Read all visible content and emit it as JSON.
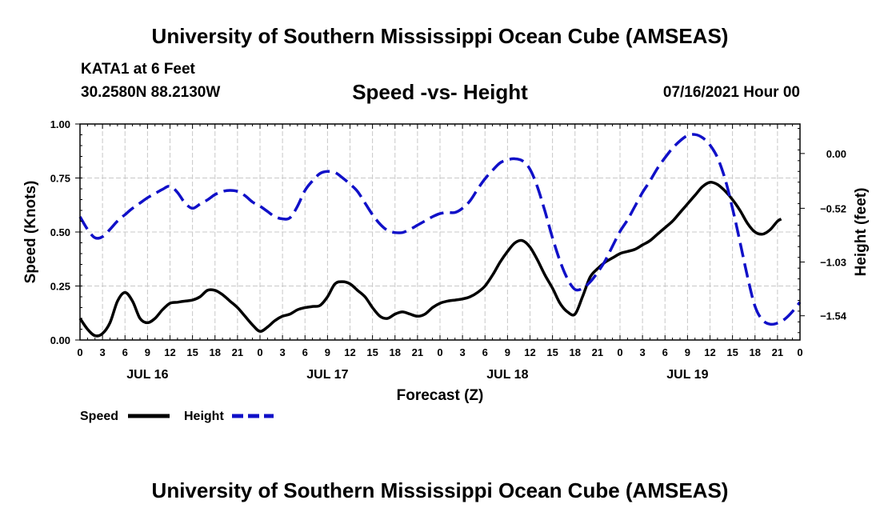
{
  "header": {
    "title": "University of Southern Mississippi Ocean Cube (AMSEAS)",
    "station": "KATA1 at 6 Feet",
    "coords": "30.2580N  88.2130W",
    "subtitle": "Speed -vs- Height",
    "datetime": "07/16/2021 Hour 00"
  },
  "footer": {
    "title": "University of Southern Mississippi Ocean Cube (AMSEAS)"
  },
  "chart_data": {
    "type": "line",
    "title": "Speed -vs- Height",
    "xlabel": "Forecast (Z)",
    "ylabel_left": "Speed (Knots)",
    "ylabel_right": "Height (feet)",
    "x_range_hours": [
      0,
      96
    ],
    "x_tick_labels": [
      "0",
      "3",
      "6",
      "9",
      "12",
      "15",
      "18",
      "21",
      "0",
      "3",
      "6",
      "9",
      "12",
      "15",
      "18",
      "21",
      "0",
      "3",
      "6",
      "9",
      "12",
      "15",
      "18",
      "21",
      "0",
      "3",
      "6",
      "9",
      "12",
      "15",
      "18",
      "21",
      "0"
    ],
    "day_labels": [
      {
        "label": "JUL 16",
        "hour": 9
      },
      {
        "label": "JUL 17",
        "hour": 33
      },
      {
        "label": "JUL 18",
        "hour": 57
      },
      {
        "label": "JUL 19",
        "hour": 81
      }
    ],
    "ylim_left": [
      0,
      1
    ],
    "y_ticks_left": [
      "0.00",
      "0.25",
      "0.50",
      "0.75",
      "1.00"
    ],
    "y_ticks_left_values": [
      0,
      0.25,
      0.5,
      0.75,
      1
    ],
    "ylim_right": [
      -1.77,
      0.28
    ],
    "y_ticks_right": [
      "0.00",
      "−0.52",
      "−1.03",
      "−1.54"
    ],
    "y_ticks_right_values": [
      0.0,
      -0.52,
      -1.03,
      -1.54
    ],
    "grid": true,
    "series": [
      {
        "name": "Speed",
        "axis": "left",
        "color": "#000000",
        "dash": "solid",
        "points": [
          [
            0,
            0.1
          ],
          [
            1,
            0.05
          ],
          [
            2,
            0.02
          ],
          [
            3,
            0.03
          ],
          [
            4,
            0.08
          ],
          [
            5,
            0.18
          ],
          [
            6,
            0.22
          ],
          [
            7,
            0.18
          ],
          [
            8,
            0.1
          ],
          [
            9,
            0.08
          ],
          [
            10,
            0.1
          ],
          [
            11,
            0.14
          ],
          [
            12,
            0.17
          ],
          [
            13,
            0.175
          ],
          [
            14,
            0.18
          ],
          [
            15,
            0.185
          ],
          [
            16,
            0.2
          ],
          [
            17,
            0.23
          ],
          [
            18,
            0.23
          ],
          [
            19,
            0.21
          ],
          [
            20,
            0.18
          ],
          [
            21,
            0.15
          ],
          [
            22,
            0.11
          ],
          [
            23,
            0.07
          ],
          [
            24,
            0.04
          ],
          [
            25,
            0.06
          ],
          [
            26,
            0.09
          ],
          [
            27,
            0.11
          ],
          [
            28,
            0.12
          ],
          [
            29,
            0.14
          ],
          [
            30,
            0.15
          ],
          [
            31,
            0.155
          ],
          [
            32,
            0.16
          ],
          [
            33,
            0.2
          ],
          [
            34,
            0.26
          ],
          [
            35,
            0.27
          ],
          [
            36,
            0.26
          ],
          [
            37,
            0.23
          ],
          [
            38,
            0.2
          ],
          [
            39,
            0.15
          ],
          [
            40,
            0.11
          ],
          [
            41,
            0.1
          ],
          [
            42,
            0.12
          ],
          [
            43,
            0.13
          ],
          [
            44,
            0.12
          ],
          [
            45,
            0.11
          ],
          [
            46,
            0.12
          ],
          [
            47,
            0.15
          ],
          [
            48,
            0.17
          ],
          [
            49,
            0.18
          ],
          [
            50,
            0.185
          ],
          [
            51,
            0.19
          ],
          [
            52,
            0.2
          ],
          [
            53,
            0.22
          ],
          [
            54,
            0.25
          ],
          [
            55,
            0.3
          ],
          [
            56,
            0.36
          ],
          [
            57,
            0.41
          ],
          [
            58,
            0.45
          ],
          [
            59,
            0.46
          ],
          [
            60,
            0.43
          ],
          [
            61,
            0.37
          ],
          [
            62,
            0.3
          ],
          [
            63,
            0.24
          ],
          [
            64,
            0.17
          ],
          [
            65,
            0.13
          ],
          [
            66,
            0.12
          ],
          [
            67,
            0.2
          ],
          [
            68,
            0.29
          ],
          [
            69,
            0.33
          ],
          [
            70,
            0.36
          ],
          [
            71,
            0.38
          ],
          [
            72,
            0.4
          ],
          [
            73,
            0.41
          ],
          [
            74,
            0.42
          ],
          [
            75,
            0.44
          ],
          [
            76,
            0.46
          ],
          [
            77,
            0.49
          ],
          [
            78,
            0.52
          ],
          [
            79,
            0.55
          ],
          [
            80,
            0.59
          ],
          [
            81,
            0.63
          ],
          [
            82,
            0.67
          ],
          [
            83,
            0.71
          ],
          [
            84,
            0.73
          ],
          [
            85,
            0.72
          ],
          [
            86,
            0.69
          ],
          [
            87,
            0.65
          ],
          [
            88,
            0.6
          ],
          [
            89,
            0.54
          ],
          [
            90,
            0.5
          ],
          [
            91,
            0.49
          ],
          [
            92,
            0.51
          ],
          [
            93,
            0.55
          ],
          [
            93.5,
            0.56
          ]
        ]
      },
      {
        "name": "Height",
        "axis": "right",
        "color": "#1010c8",
        "dash": "dashed",
        "points": [
          [
            0,
            -0.6
          ],
          [
            1,
            -0.72
          ],
          [
            2,
            -0.8
          ],
          [
            3,
            -0.79
          ],
          [
            4,
            -0.72
          ],
          [
            5,
            -0.64
          ],
          [
            6,
            -0.58
          ],
          [
            7,
            -0.52
          ],
          [
            8,
            -0.47
          ],
          [
            9,
            -0.42
          ],
          [
            10,
            -0.38
          ],
          [
            11,
            -0.34
          ],
          [
            12,
            -0.31
          ],
          [
            13,
            -0.37
          ],
          [
            14,
            -0.47
          ],
          [
            15,
            -0.52
          ],
          [
            16,
            -0.48
          ],
          [
            17,
            -0.44
          ],
          [
            18,
            -0.39
          ],
          [
            19,
            -0.36
          ],
          [
            20,
            -0.35
          ],
          [
            21,
            -0.36
          ],
          [
            22,
            -0.4
          ],
          [
            23,
            -0.46
          ],
          [
            24,
            -0.5
          ],
          [
            25,
            -0.55
          ],
          [
            26,
            -0.6
          ],
          [
            27,
            -0.62
          ],
          [
            28,
            -0.61
          ],
          [
            29,
            -0.5
          ],
          [
            30,
            -0.35
          ],
          [
            31,
            -0.26
          ],
          [
            32,
            -0.19
          ],
          [
            33,
            -0.17
          ],
          [
            34,
            -0.18
          ],
          [
            35,
            -0.23
          ],
          [
            36,
            -0.29
          ],
          [
            37,
            -0.36
          ],
          [
            38,
            -0.47
          ],
          [
            39,
            -0.58
          ],
          [
            40,
            -0.67
          ],
          [
            41,
            -0.73
          ],
          [
            42,
            -0.75
          ],
          [
            43,
            -0.75
          ],
          [
            44,
            -0.72
          ],
          [
            45,
            -0.68
          ],
          [
            46,
            -0.64
          ],
          [
            47,
            -0.6
          ],
          [
            48,
            -0.57
          ],
          [
            49,
            -0.56
          ],
          [
            50,
            -0.56
          ],
          [
            51,
            -0.52
          ],
          [
            52,
            -0.45
          ],
          [
            53,
            -0.34
          ],
          [
            54,
            -0.24
          ],
          [
            55,
            -0.16
          ],
          [
            56,
            -0.09
          ],
          [
            57,
            -0.06
          ],
          [
            58,
            -0.05
          ],
          [
            59,
            -0.07
          ],
          [
            60,
            -0.15
          ],
          [
            61,
            -0.32
          ],
          [
            62,
            -0.55
          ],
          [
            63,
            -0.8
          ],
          [
            64,
            -1.02
          ],
          [
            65,
            -1.19
          ],
          [
            66,
            -1.29
          ],
          [
            67,
            -1.28
          ],
          [
            68,
            -1.22
          ],
          [
            69,
            -1.13
          ],
          [
            70,
            -1.02
          ],
          [
            71,
            -0.88
          ],
          [
            72,
            -0.74
          ],
          [
            73,
            -0.63
          ],
          [
            74,
            -0.5
          ],
          [
            75,
            -0.37
          ],
          [
            76,
            -0.26
          ],
          [
            77,
            -0.14
          ],
          [
            78,
            -0.04
          ],
          [
            79,
            0.05
          ],
          [
            80,
            0.12
          ],
          [
            81,
            0.17
          ],
          [
            82,
            0.18
          ],
          [
            83,
            0.15
          ],
          [
            84,
            0.08
          ],
          [
            85,
            -0.04
          ],
          [
            86,
            -0.24
          ],
          [
            87,
            -0.52
          ],
          [
            88,
            -0.84
          ],
          [
            89,
            -1.17
          ],
          [
            90,
            -1.45
          ],
          [
            91,
            -1.58
          ],
          [
            92,
            -1.62
          ],
          [
            93,
            -1.61
          ],
          [
            94,
            -1.57
          ],
          [
            95,
            -1.5
          ],
          [
            96,
            -1.41
          ]
        ]
      }
    ],
    "legend": [
      {
        "label": "Speed",
        "color": "#000000",
        "dash": "solid"
      },
      {
        "label": "Height",
        "color": "#1010c8",
        "dash": "dashed"
      }
    ]
  }
}
